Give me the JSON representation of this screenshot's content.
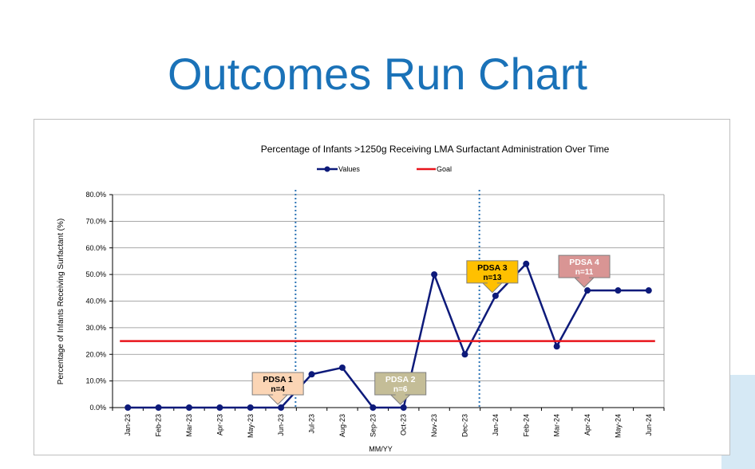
{
  "slide": {
    "title": "Outcomes Run Chart"
  },
  "chart_data": {
    "type": "line",
    "title": "Percentage of Infants >1250g Receiving LMA Surfactant Administration Over Time",
    "xlabel": "MM/YY",
    "ylabel": "Percentage of Infants Receiving Surfactant (%)",
    "ylim": [
      0,
      80
    ],
    "yticks": [
      "0.0%",
      "10.0%",
      "20.0%",
      "30.0%",
      "40.0%",
      "50.0%",
      "60.0%",
      "70.0%",
      "80.0%"
    ],
    "grid": true,
    "legend_position": "top",
    "categories": [
      "Jan-23",
      "Feb-23",
      "Mar-23",
      "Apr-23",
      "May-23",
      "Jun-23",
      "Jul-23",
      "Aug-23",
      "Sep-23",
      "Oct-23",
      "Nov-23",
      "Dec-23",
      "Jan-24",
      "Feb-24",
      "Mar-24",
      "Apr-24",
      "May-24",
      "Jun-24"
    ],
    "series": [
      {
        "name": "Values",
        "color": "#0d1a7a",
        "values": [
          0,
          0,
          0,
          0,
          0,
          0,
          12.5,
          15,
          0,
          0,
          50,
          20,
          42,
          54,
          23,
          44,
          44,
          44
        ]
      },
      {
        "name": "Goal",
        "color": "#e8141b",
        "values": [
          25,
          25,
          25,
          25,
          25,
          25,
          25,
          25,
          25,
          25,
          25,
          25,
          25,
          25,
          25,
          25,
          25,
          25
        ]
      }
    ],
    "dividers": [
      {
        "after_index": 5
      },
      {
        "after_index": 11
      }
    ],
    "annotations": [
      {
        "line1": "PDSA 1",
        "line2": "n=4",
        "index": 5,
        "value": 0,
        "fill": "#fbd5b5",
        "text_color": "#000000"
      },
      {
        "line1": "PDSA 2",
        "line2": "n=6",
        "index": 9,
        "value": 0,
        "fill": "#c4bd97",
        "text_color": "#ffffff"
      },
      {
        "line1": "PDSA 3",
        "line2": "n=13",
        "index": 12,
        "value": 42,
        "fill": "#ffc000",
        "text_color": "#000000"
      },
      {
        "line1": "PDSA 4",
        "line2": "n=11",
        "index": 15,
        "value": 44,
        "fill": "#d99594",
        "text_color": "#ffffff"
      }
    ]
  }
}
